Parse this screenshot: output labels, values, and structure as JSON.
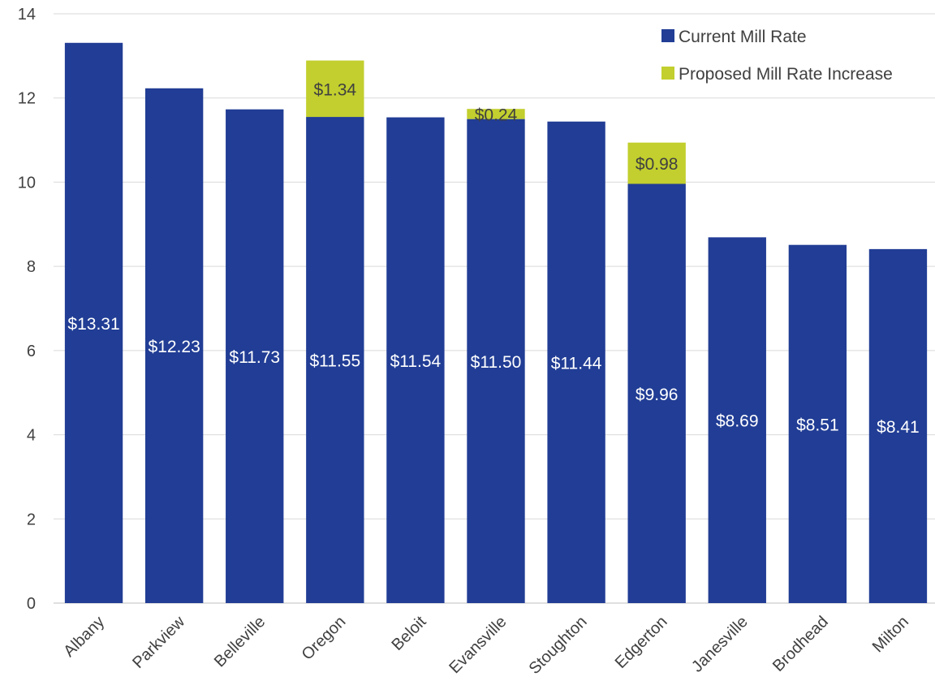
{
  "chart_data": {
    "type": "bar",
    "stacked": true,
    "categories": [
      "Albany",
      "Parkview",
      "Belleville",
      "Oregon",
      "Beloit",
      "Evansville",
      "Stoughton",
      "Edgerton",
      "Janesville",
      "Brodhead",
      "Milton"
    ],
    "series": [
      {
        "name": "Current Mill Rate",
        "color": "#213D95",
        "values": [
          13.31,
          12.23,
          11.73,
          11.55,
          11.54,
          11.5,
          11.44,
          9.96,
          8.69,
          8.51,
          8.41
        ],
        "labels": [
          "$13.31",
          "$12.23",
          "$11.73",
          "$11.55",
          "$11.54",
          "$11.50",
          "$11.44",
          "$9.96",
          "$8.69",
          "$8.51",
          "$8.41"
        ]
      },
      {
        "name": "Proposed Mill Rate Increase",
        "color": "#C2CF2E",
        "values": [
          0,
          0,
          0,
          1.34,
          0,
          0.24,
          0,
          0.98,
          0,
          0,
          0
        ],
        "labels": [
          "",
          "",
          "",
          "$1.34",
          "",
          "$0.24",
          "",
          "$0.98",
          "",
          "",
          ""
        ]
      }
    ],
    "yticks": [
      0,
      2,
      4,
      6,
      8,
      10,
      12,
      14
    ],
    "ylim": [
      0,
      14
    ],
    "xlabel": "",
    "ylabel": "",
    "title": "",
    "grid": true,
    "legend": "top-right"
  }
}
